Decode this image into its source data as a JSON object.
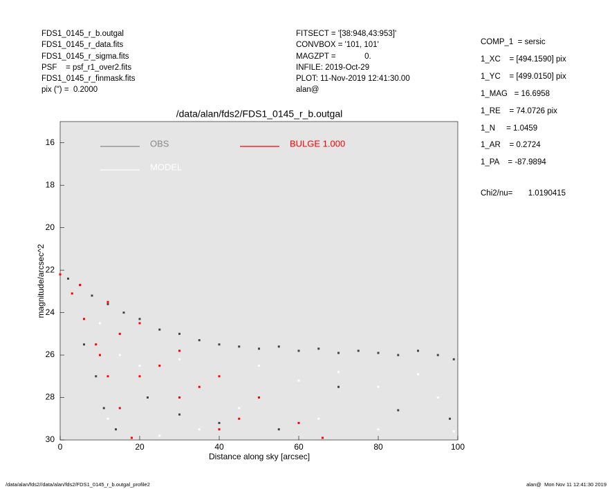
{
  "header": {
    "left": [
      "FDS1_0145_r_b.outgal",
      "FDS1_0145_r_data.fits",
      "FDS1_0145_r_sigma.fits",
      "PSF    = psf_r1_over2.fits",
      "FDS1_0145_r_finmask.fits",
      "pix (\") =  0.2000"
    ],
    "middle": [
      "FITSECT = '[38:948,43:953]'",
      "CONVBOX = '101, 101'",
      "MAGZPT =             0.",
      "INFILE: 2019-Oct-29",
      "PLOT: 11-Nov-2019 12:41:30.00",
      "alan@"
    ],
    "right": [
      "COMP_1  = sersic",
      "1_XC    = [494.1590] pix",
      "1_YC    = [499.0150] pix",
      "1_MAG   = 16.6958",
      "1_RE    = 74.0726 pix",
      "1_N     = 1.0459",
      "1_AR    = 0.2724",
      "1_PA    = -87.9894"
    ],
    "chi2": "Chi2/nu=       1.0190415"
  },
  "footer": {
    "left": "/data/alan/fds2//data/alan/fds2/FDS1_0145_r_b.outgal_profile2",
    "right": "alan@  Mon Nov 11 12:41:30 2019"
  },
  "chart_data": {
    "type": "scatter",
    "title": "/data/alan/fds2/FDS1_0145_r_b.outgal",
    "x_label": "Distance along sky [arcsec]",
    "y_label": "magnitude/arcsec^2",
    "xlim": [
      0,
      100
    ],
    "ylim": [
      30,
      15
    ],
    "xticks": [
      0,
      20,
      40,
      60,
      80,
      100
    ],
    "yticks": [
      16,
      18,
      20,
      22,
      24,
      26,
      28,
      30
    ],
    "series": [
      {
        "name": "OBS",
        "color": "#888888",
        "point_color": "#444444",
        "x": [
          2,
          5,
          8,
          12,
          16,
          20,
          25,
          30,
          35,
          40,
          45,
          50,
          55,
          60,
          65,
          70,
          75,
          80,
          85,
          90,
          95,
          99,
          6,
          9,
          11,
          14,
          22,
          30,
          40,
          55,
          70,
          85,
          98
        ],
        "values": [
          22.4,
          22.7,
          23.2,
          23.6,
          24.0,
          24.3,
          24.8,
          25.0,
          25.3,
          25.5,
          25.6,
          25.7,
          25.6,
          25.8,
          25.7,
          25.9,
          25.8,
          25.9,
          26.0,
          25.8,
          26.0,
          26.2,
          25.5,
          27.0,
          28.5,
          29.5,
          28.0,
          28.8,
          29.2,
          29.5,
          27.5,
          28.6,
          29.0
        ]
      },
      {
        "name": "MODEL",
        "color": "#ffffff",
        "point_color": "#ffffff",
        "x": [
          10,
          15,
          20,
          30,
          40,
          50,
          60,
          70,
          80,
          90,
          95,
          45,
          65,
          80,
          99,
          25,
          12,
          35
        ],
        "values": [
          24.5,
          26,
          26.5,
          26.2,
          27,
          26.5,
          27.2,
          26.8,
          27.5,
          26.9,
          28,
          28.5,
          29,
          29.5,
          29.6,
          29.8,
          29.0,
          29.5
        ]
      },
      {
        "name": "BULGE  1.000",
        "color": "#ff0000",
        "point_color": "#ff0000",
        "x": [
          0,
          3,
          6,
          9,
          12,
          15,
          18,
          5,
          12,
          20,
          30,
          40,
          50,
          60,
          66,
          10,
          20,
          30,
          40,
          25,
          35,
          45,
          15
        ],
        "values": [
          22.2,
          23.1,
          24.3,
          25.5,
          27,
          28.5,
          29.9,
          22.7,
          23.5,
          24.5,
          25.8,
          27.0,
          28.0,
          29.2,
          29.9,
          26,
          27,
          28,
          29.5,
          26.5,
          27.5,
          29,
          25
        ]
      }
    ]
  }
}
